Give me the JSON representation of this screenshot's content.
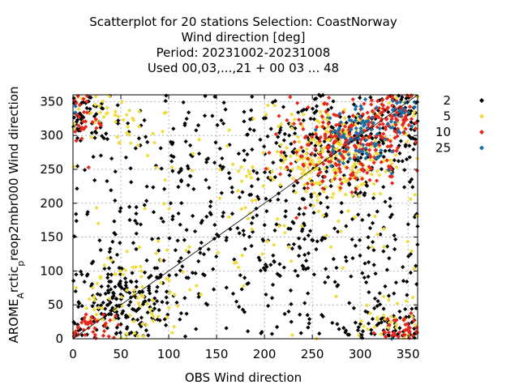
{
  "chart_data": {
    "type": "scatter",
    "title_lines": [
      "Scatterplot for   20 stations Selection: CoastNorway",
      "Wind direction [deg]",
      "Period: 20231002-20231008",
      "Used  00,03,...,21  + 00 03 ... 48"
    ],
    "xlabel": "OBS Wind direction",
    "ylabel_parts": [
      "AROME",
      "A",
      "rctic",
      "p",
      "reop2mbr000 Wind direction"
    ],
    "xlim": [
      0,
      360
    ],
    "ylim": [
      0,
      360
    ],
    "xticks": [
      "0",
      "50",
      "100",
      "150",
      "200",
      "250",
      "300",
      "350"
    ],
    "yticks": [
      "0",
      "50",
      "100",
      "150",
      "200",
      "250",
      "300",
      "350"
    ],
    "grid": true,
    "diagonal": true,
    "legend_position": "right",
    "legend": [
      {
        "label": "2",
        "color": "#000000"
      },
      {
        "label": "5",
        "color": "#f0dc3c"
      },
      {
        "label": "10",
        "color": "#e8271b"
      },
      {
        "label": "25",
        "color": "#1a6fa8"
      }
    ],
    "clusters": [
      {
        "series": "2",
        "cx": 180,
        "cy": 180,
        "sx": 105,
        "sy": 105,
        "n": 520,
        "seed": 11
      },
      {
        "series": "2",
        "cx": 55,
        "cy": 55,
        "sx": 30,
        "sy": 30,
        "n": 170,
        "seed": 12
      },
      {
        "series": "2",
        "cx": 290,
        "cy": 290,
        "sx": 45,
        "sy": 45,
        "n": 220,
        "seed": 13
      },
      {
        "series": "2",
        "cx": 15,
        "cy": 330,
        "sx": 25,
        "sy": 25,
        "n": 70,
        "seed": 14
      },
      {
        "series": "2",
        "cx": 340,
        "cy": 20,
        "sx": 25,
        "sy": 25,
        "n": 70,
        "seed": 15
      },
      {
        "series": "5",
        "cx": 275,
        "cy": 270,
        "sx": 35,
        "sy": 35,
        "n": 260,
        "seed": 21
      },
      {
        "series": "5",
        "cx": 30,
        "cy": 330,
        "sx": 30,
        "sy": 22,
        "n": 60,
        "seed": 22
      },
      {
        "series": "5",
        "cx": 60,
        "cy": 60,
        "sx": 30,
        "sy": 30,
        "n": 70,
        "seed": 23
      },
      {
        "series": "5",
        "cx": 180,
        "cy": 160,
        "sx": 90,
        "sy": 90,
        "n": 90,
        "seed": 24
      },
      {
        "series": "5",
        "cx": 340,
        "cy": 20,
        "sx": 20,
        "sy": 20,
        "n": 35,
        "seed": 25
      },
      {
        "series": "10",
        "cx": 280,
        "cy": 280,
        "sx": 35,
        "sy": 35,
        "n": 210,
        "seed": 31
      },
      {
        "series": "10",
        "cx": 330,
        "cy": 330,
        "sx": 20,
        "sy": 20,
        "n": 90,
        "seed": 32
      },
      {
        "series": "10",
        "cx": 15,
        "cy": 15,
        "sx": 15,
        "sy": 12,
        "n": 45,
        "seed": 33
      },
      {
        "series": "10",
        "cx": 345,
        "cy": 10,
        "sx": 15,
        "sy": 10,
        "n": 30,
        "seed": 34
      },
      {
        "series": "10",
        "cx": 10,
        "cy": 320,
        "sx": 15,
        "sy": 20,
        "n": 25,
        "seed": 35
      },
      {
        "series": "25",
        "cx": 305,
        "cy": 300,
        "sx": 22,
        "sy": 22,
        "n": 90,
        "seed": 41
      },
      {
        "series": "25",
        "cx": 340,
        "cy": 340,
        "sx": 12,
        "sy": 10,
        "n": 20,
        "seed": 42
      }
    ]
  }
}
